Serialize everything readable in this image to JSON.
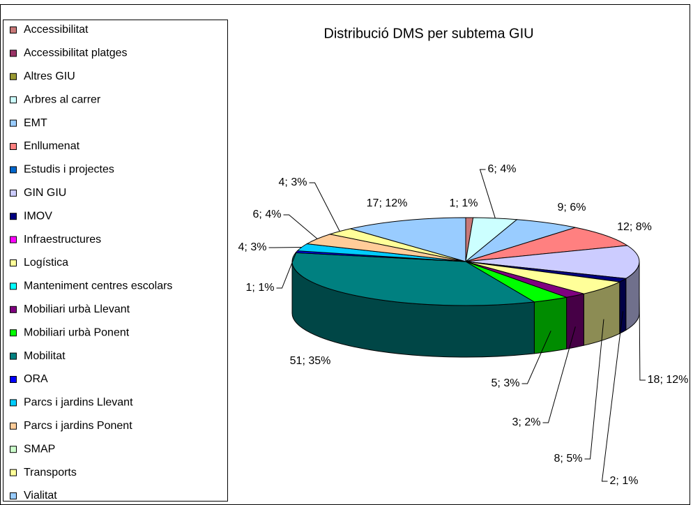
{
  "chart_data": {
    "type": "pie3d",
    "title": "Distribució  DMS per subtema GIU",
    "categories": [
      "Accessibilitat",
      "Accessibilitat platges",
      "Altres GIU",
      "Arbres al carrer",
      "EMT",
      "Enllumenat",
      "Estudis i projectes",
      "GIN GIU",
      "IMOV",
      "Infraestructures",
      "Logística",
      "Manteniment centres escolars",
      "Mobiliari urbà Llevant",
      "Mobiliari urbà Ponent",
      "Mobilitat",
      "ORA",
      "Parcs i jardins Llevant",
      "Parcs i jardins Ponent",
      "SMAP",
      "Transports",
      "Vialitat"
    ],
    "values": [
      1,
      0,
      0,
      6,
      9,
      12,
      0,
      18,
      2,
      0,
      8,
      0,
      3,
      5,
      51,
      1,
      4,
      6,
      0,
      4,
      17
    ],
    "value_labels": [
      "1; 1%",
      null,
      null,
      "6; 4%",
      "9; 6%",
      "12; 8%",
      null,
      "18; 12%",
      "2; 1%",
      null,
      "8; 5%",
      null,
      "3; 2%",
      "5; 3%",
      "51; 35%",
      "1; 1%",
      "4; 3%",
      "6; 4%",
      null,
      "4; 3%",
      "17; 12%"
    ],
    "colors": [
      "#c87878",
      "#993366",
      "#999933",
      "#ccffff",
      "#99ccff",
      "#ff8080",
      "#0066cc",
      "#ccccff",
      "#000080",
      "#ff00ff",
      "#ffff99",
      "#00ffff",
      "#800080",
      "#00ff00",
      "#008080",
      "#0000ff",
      "#00ccff",
      "#ffcc99",
      "#ccffcc",
      "#ffff99",
      "#99ccff"
    ],
    "legend": "left"
  }
}
